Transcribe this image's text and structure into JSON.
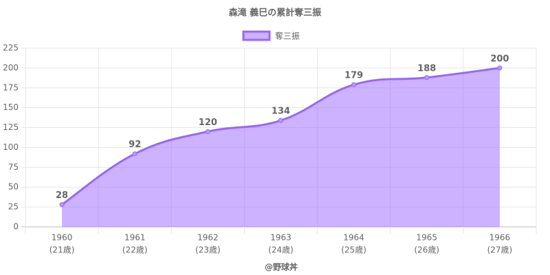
{
  "chart_data": {
    "type": "line",
    "title": "森滝 義巳の累計奪三振",
    "categories": [
      [
        "1960",
        "(21歳)"
      ],
      [
        "1961",
        "(22歳)"
      ],
      [
        "1962",
        "(23歳)"
      ],
      [
        "1963",
        "(24歳)"
      ],
      [
        "1964",
        "(25歳)"
      ],
      [
        "1965",
        "(26歳)"
      ],
      [
        "1966",
        "(27歳)"
      ]
    ],
    "series": [
      {
        "name": "奪三振",
        "color": "#9966ff",
        "values": [
          28,
          92,
          120,
          134,
          179,
          188,
          200
        ]
      }
    ],
    "x_label": "@野球丼",
    "ylim": [
      0,
      225
    ],
    "yticks": [
      0,
      25,
      50,
      75,
      100,
      125,
      150,
      175,
      200,
      225
    ],
    "grid": true,
    "legend": "top",
    "area": true,
    "smooth": true
  }
}
